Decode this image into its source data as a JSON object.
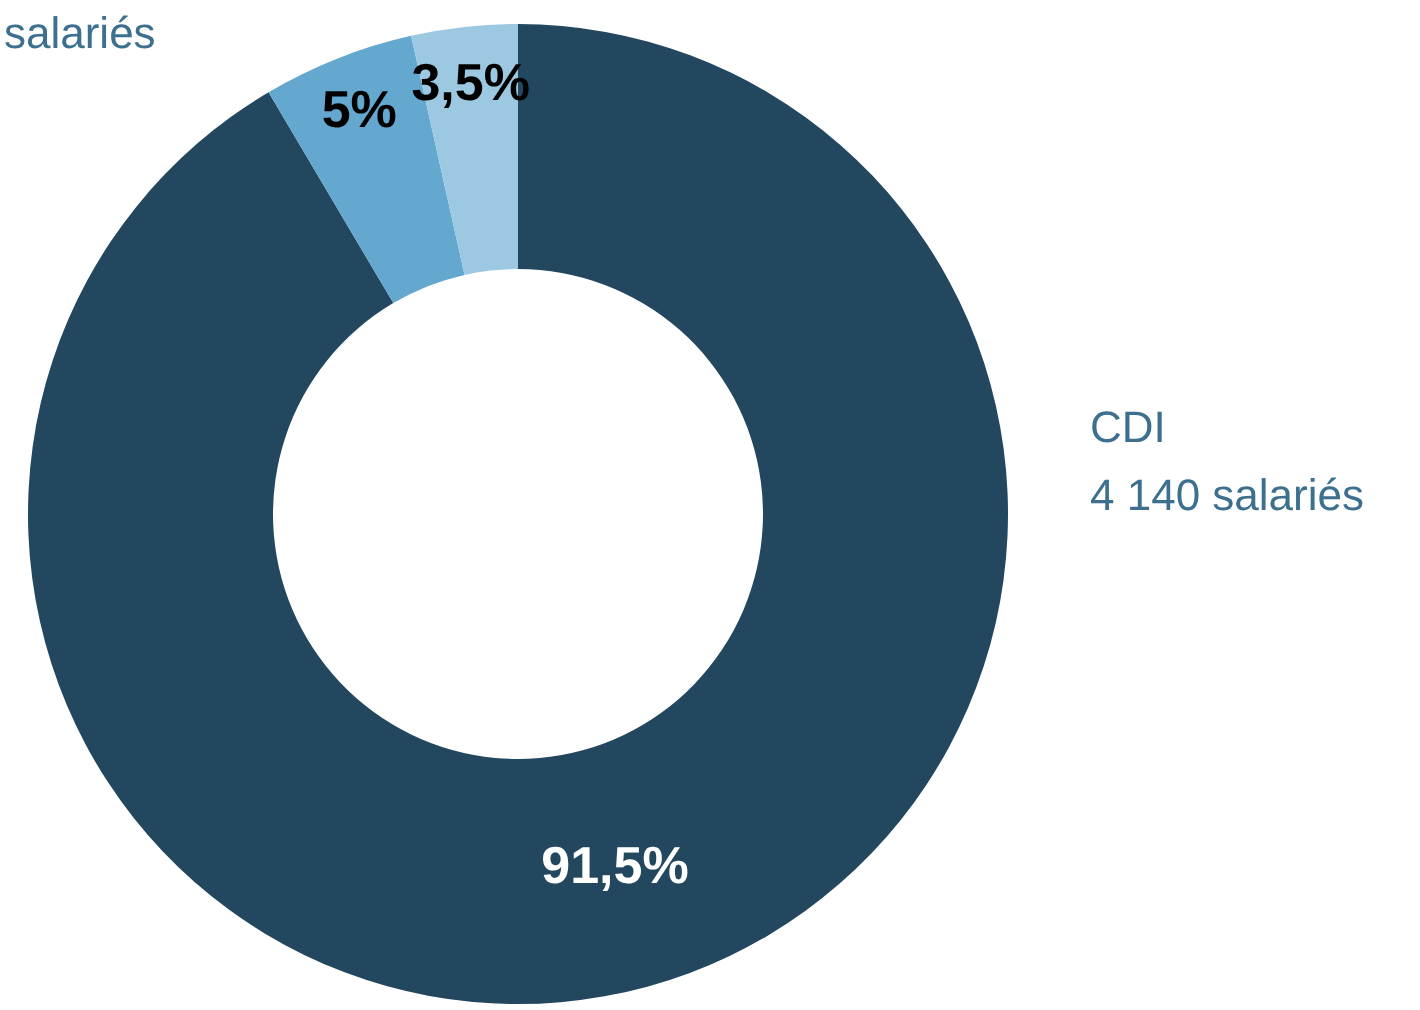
{
  "chart_data": {
    "type": "donut",
    "categories": [
      "CDI\n4 140 salariés",
      null,
      null
    ],
    "values": [
      91.5,
      5,
      3.5
    ],
    "colors": [
      "#22475f",
      "#64a7cf",
      "#9dc8e2"
    ],
    "value_labels": [
      "91,5%",
      "5%",
      "3,5%"
    ],
    "annotations": [
      "salariés"
    ],
    "legend": false
  }
}
